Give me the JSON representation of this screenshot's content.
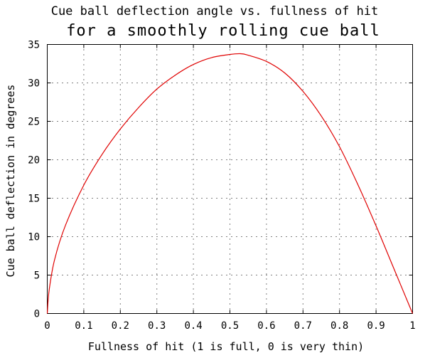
{
  "chart_data": {
    "type": "line",
    "title": "Cue ball deflection angle vs. fullness of hit",
    "subtitle": "for a smoothly rolling cue ball",
    "xlabel": "Fullness of hit (1 is full, 0 is very thin)",
    "ylabel": "Cue ball deflection in degrees",
    "xlim": [
      0,
      1
    ],
    "ylim": [
      0,
      35
    ],
    "x_ticks": [
      0,
      0.1,
      0.2,
      0.3,
      0.4,
      0.5,
      0.6,
      0.7,
      0.8,
      0.9,
      1
    ],
    "x_tick_labels": [
      "0",
      "0.1",
      "0.2",
      "0.3",
      "0.4",
      "0.5",
      "0.6",
      "0.7",
      "0.8",
      "0.9",
      "1"
    ],
    "y_ticks": [
      0,
      5,
      10,
      15,
      20,
      25,
      30,
      35
    ],
    "y_tick_labels": [
      "0",
      "5",
      "10",
      "15",
      "20",
      "25",
      "30",
      "35"
    ],
    "grid": true,
    "series": [
      {
        "color": "#e00000",
        "x": [
          0,
          0.005,
          0.02,
          0.05,
          0.1,
          0.15,
          0.2,
          0.25,
          0.3,
          0.35,
          0.4,
          0.45,
          0.5,
          0.53,
          0.55,
          0.6,
          0.65,
          0.7,
          0.75,
          0.8,
          0.85,
          0.9,
          0.95,
          1
        ],
        "y": [
          0,
          3.0,
          7.0,
          11.5,
          16.7,
          20.7,
          24.0,
          26.8,
          29.2,
          31.0,
          32.4,
          33.3,
          33.7,
          33.8,
          33.6,
          32.8,
          31.3,
          28.9,
          25.7,
          21.7,
          16.8,
          11.4,
          5.7,
          0
        ]
      }
    ]
  }
}
